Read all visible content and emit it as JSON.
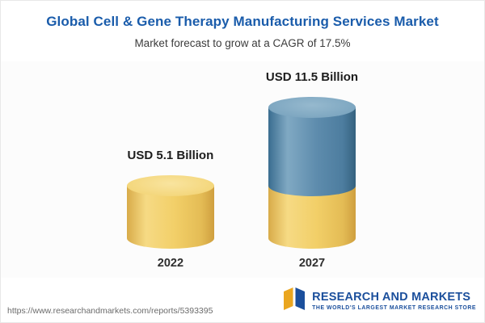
{
  "header": {
    "title": "Global Cell & Gene Therapy Manufacturing Services Market",
    "subtitle": "Market forecast to grow at a CAGR of 17.5%"
  },
  "chart_data": {
    "type": "bar",
    "title": "Global Cell & Gene Therapy Manufacturing Services Market",
    "subtitle": "Market forecast to grow at a CAGR of 17.5%",
    "categories": [
      "2022",
      "2027"
    ],
    "values": [
      5.1,
      11.5
    ],
    "unit": "USD Billion",
    "ylim": [
      0,
      12
    ],
    "grid": false,
    "legend": false,
    "bar_style": "3d-cylinder",
    "colors": {
      "base_segment": "#F2CF68",
      "growth_segment": "#5E8CAD"
    },
    "bars": [
      {
        "category": "2022",
        "value": 5.1,
        "label": "USD 5.1 Billion"
      },
      {
        "category": "2027",
        "value": 11.5,
        "label": "USD 11.5 Billion"
      }
    ]
  },
  "footer": {
    "url": "https://www.researchandmarkets.com/reports/5393395",
    "logo": {
      "name_part1": "RESEARCH AND",
      "name_part2": "MARKETS",
      "tagline": "THE WORLD'S LARGEST MARKET RESEARCH STORE"
    }
  }
}
